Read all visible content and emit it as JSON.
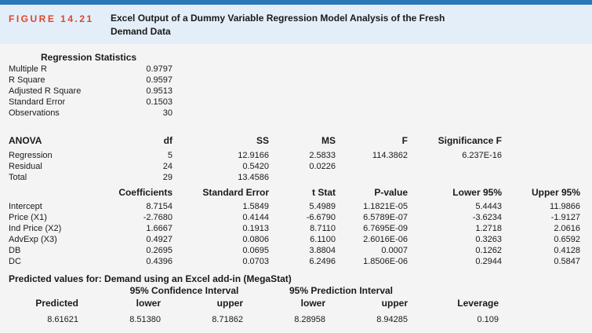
{
  "figure": {
    "label": "Figure 14.21",
    "title": "Excel Output of a Dummy Variable Regression Model Analysis of the Fresh Demand Data"
  },
  "regression_statistics": {
    "heading": "Regression Statistics",
    "rows": [
      {
        "label": "Multiple R",
        "value": "0.9797"
      },
      {
        "label": "R Square",
        "value": "0.9597"
      },
      {
        "label": "Adjusted R Square",
        "value": "0.9513"
      },
      {
        "label": "Standard Error",
        "value": "0.1503"
      },
      {
        "label": "Observations",
        "value": "30"
      }
    ]
  },
  "anova": {
    "heading": "ANOVA",
    "columns": [
      "df",
      "SS",
      "MS",
      "F",
      "Significance F"
    ],
    "rows": [
      {
        "label": "Regression",
        "df": "5",
        "ss": "12.9166",
        "ms": "2.5833",
        "f": "114.3862",
        "sig": "6.237E-16"
      },
      {
        "label": "Residual",
        "df": "24",
        "ss": "0.5420",
        "ms": "0.0226",
        "f": "",
        "sig": ""
      },
      {
        "label": "Total",
        "df": "29",
        "ss": "13.4586",
        "ms": "",
        "f": "",
        "sig": ""
      }
    ]
  },
  "coefficients": {
    "columns": [
      "Coefficients",
      "Standard Error",
      "t Stat",
      "P-value",
      "Lower 95%",
      "Upper 95%"
    ],
    "rows": [
      {
        "label": "Intercept",
        "coef": "8.7154",
        "se": "1.5849",
        "t": "5.4989",
        "p": "1.1821E-05",
        "lo": "5.4443",
        "hi": "11.9866"
      },
      {
        "label": "Price (X1)",
        "coef": "-2.7680",
        "se": "0.4144",
        "t": "-6.6790",
        "p": "6.5789E-07",
        "lo": "-3.6234",
        "hi": "-1.9127"
      },
      {
        "label": "Ind Price (X2)",
        "coef": "1.6667",
        "se": "0.1913",
        "t": "8.7110",
        "p": "6.7695E-09",
        "lo": "1.2718",
        "hi": "2.0616"
      },
      {
        "label": "AdvExp (X3)",
        "coef": "0.4927",
        "se": "0.0806",
        "t": "6.1100",
        "p": "2.6016E-06",
        "lo": "0.3263",
        "hi": "0.6592"
      },
      {
        "label": "DB",
        "coef": "0.2695",
        "se": "0.0695",
        "t": "3.8804",
        "p": "0.0007",
        "lo": "0.1262",
        "hi": "0.4128"
      },
      {
        "label": "DC",
        "coef": "0.4396",
        "se": "0.0703",
        "t": "6.2496",
        "p": "1.8506E-06",
        "lo": "0.2944",
        "hi": "0.5847"
      }
    ]
  },
  "predicted": {
    "heading": "Predicted values for: Demand using an Excel add-in (MegaStat)",
    "ci_heading": "95% Confidence Interval",
    "pi_heading": "95% Prediction Interval",
    "columns": [
      "Predicted",
      "lower",
      "upper",
      "lower",
      "upper",
      "Leverage"
    ],
    "values": [
      "8.61621",
      "8.51380",
      "8.71862",
      "8.28958",
      "8.94285",
      "0.109"
    ]
  }
}
